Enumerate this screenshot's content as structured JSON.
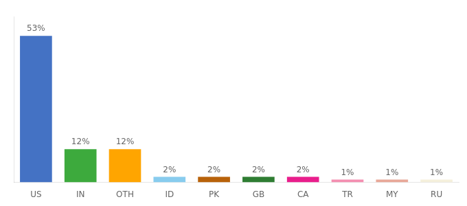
{
  "chart_data": {
    "type": "bar",
    "categories": [
      "US",
      "IN",
      "OTH",
      "ID",
      "PK",
      "GB",
      "CA",
      "TR",
      "MY",
      "RU"
    ],
    "values": [
      53,
      12,
      12,
      2,
      2,
      2,
      2,
      1,
      1,
      1
    ],
    "value_labels": [
      "53%",
      "12%",
      "12%",
      "2%",
      "2%",
      "2%",
      "2%",
      "1%",
      "1%",
      "1%"
    ],
    "colors": [
      "#4472C4",
      "#3DAA3D",
      "#FFA500",
      "#88CCEE",
      "#B8620A",
      "#2E7D32",
      "#E91E8C",
      "#F48FB1",
      "#E8A898",
      "#F5F0DC"
    ],
    "ylim": [
      0,
      60
    ],
    "data_labels": true,
    "tick_labels": "x",
    "grid": false
  }
}
